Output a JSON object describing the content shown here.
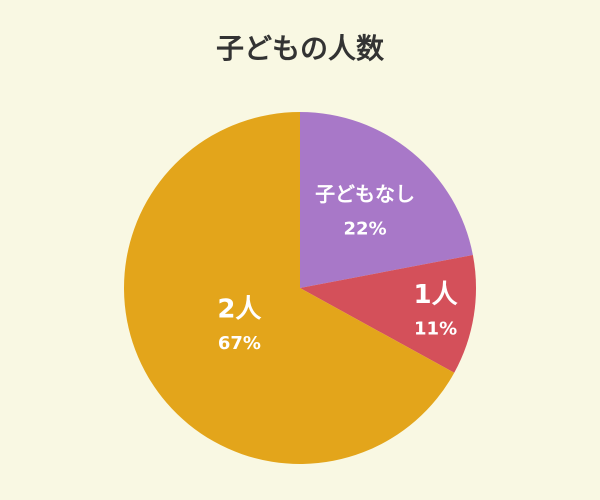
{
  "chart_data": {
    "type": "pie",
    "title": "子どもの人数",
    "categories": [
      "子どもなし",
      "1人",
      "2人"
    ],
    "values": [
      22,
      11,
      67
    ],
    "value_labels": [
      "22%",
      "11%",
      "67%"
    ],
    "colors": [
      "#a878c8",
      "#d4505a",
      "#e3a51b"
    ]
  }
}
